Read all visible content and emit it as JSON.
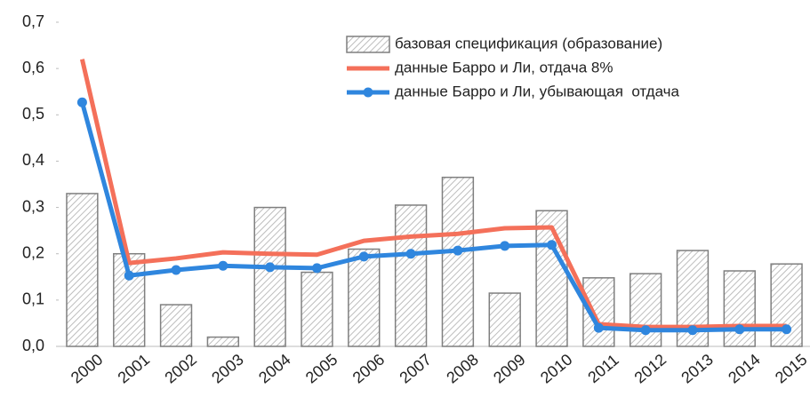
{
  "chart_data": {
    "type": "bar",
    "categories": [
      "2000",
      "2001",
      "2002",
      "2003",
      "2004",
      "2005",
      "2006",
      "2007",
      "2008",
      "2009",
      "2010",
      "2011",
      "2012",
      "2013",
      "2014",
      "2015"
    ],
    "series": [
      {
        "name": "базовая спецификация (образование)",
        "type": "bar",
        "color": "#7f7f7f",
        "values": [
          0.33,
          0.2,
          0.09,
          0.02,
          0.3,
          0.16,
          0.21,
          0.305,
          0.365,
          0.115,
          0.293,
          0.148,
          0.157,
          0.207,
          0.163,
          0.178
        ]
      },
      {
        "name": "данные Барро и Ли, отдача 8%",
        "type": "line",
        "color": "#f4705a",
        "values": [
          0.62,
          0.18,
          0.19,
          0.203,
          0.2,
          0.198,
          0.228,
          0.237,
          0.243,
          0.255,
          0.257,
          0.048,
          0.042,
          0.042,
          0.044,
          0.044
        ]
      },
      {
        "name": "данные Барро и Ли, убывающая  отдача",
        "type": "line",
        "color": "#2f86de",
        "markers": true,
        "values": [
          0.527,
          0.153,
          0.165,
          0.174,
          0.171,
          0.169,
          0.194,
          0.2,
          0.207,
          0.217,
          0.219,
          0.04,
          0.035,
          0.035,
          0.037,
          0.037
        ]
      }
    ],
    "ylim": [
      0,
      0.7
    ],
    "yticks": [
      {
        "value": 0,
        "label": "0,0"
      },
      {
        "value": 0.1,
        "label": "0,1"
      },
      {
        "value": 0.2,
        "label": "0,2"
      },
      {
        "value": 0.3,
        "label": "0,3"
      },
      {
        "value": 0.4,
        "label": "0,4"
      },
      {
        "value": 0.5,
        "label": "0,5"
      },
      {
        "value": 0.6,
        "label": "0,6"
      },
      {
        "value": 0.7,
        "label": "0,7"
      }
    ],
    "grid": false,
    "legend": "top-right"
  }
}
